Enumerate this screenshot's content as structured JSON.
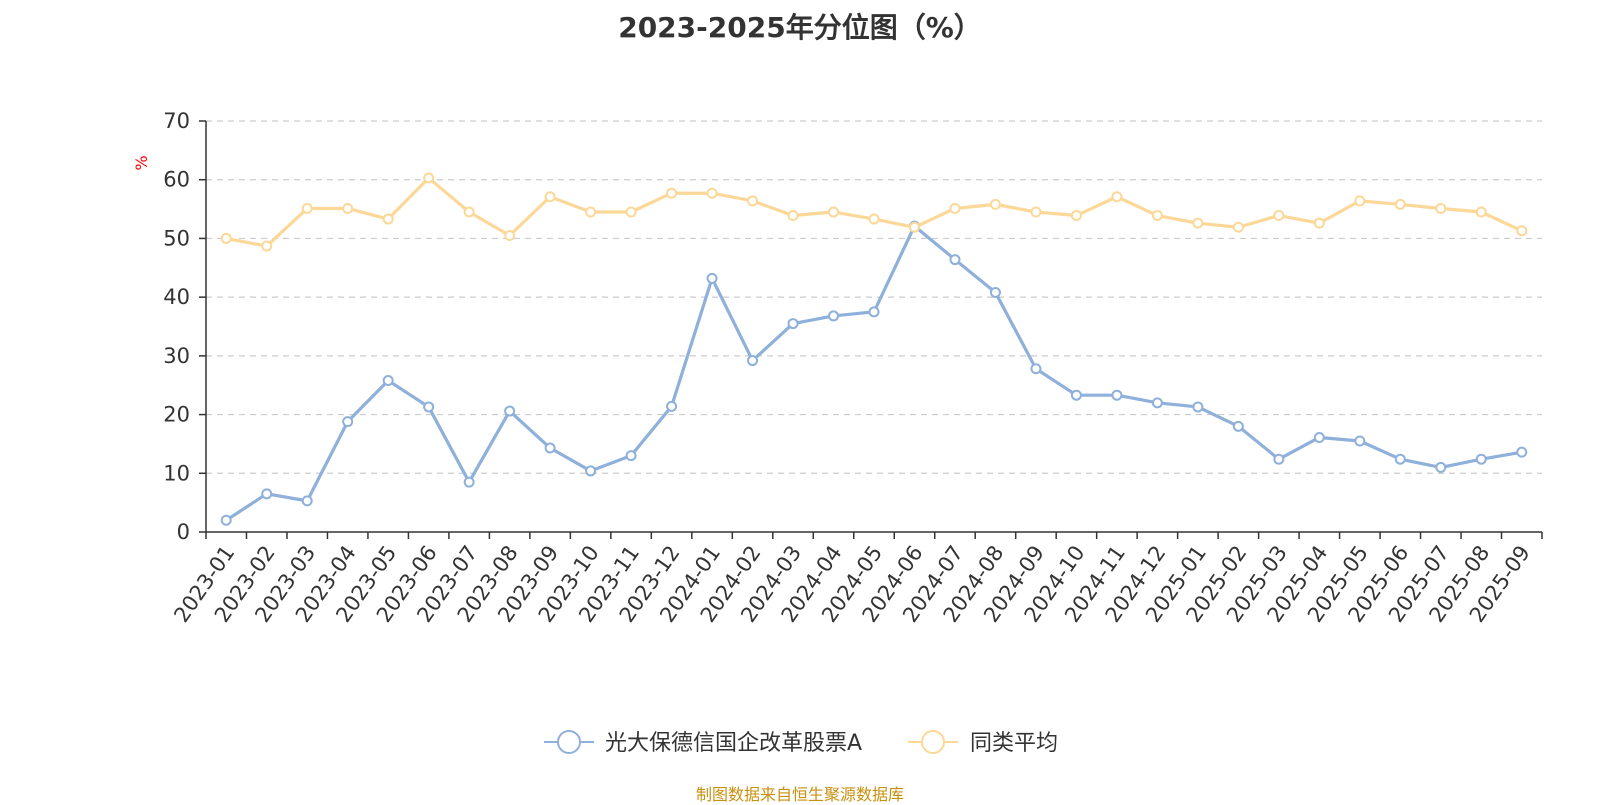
{
  "chart_data": {
    "type": "line",
    "title": "2023-2025年分位图（%）",
    "ylabel": "%",
    "ylim": [
      0,
      70
    ],
    "yticks": [
      0,
      10,
      20,
      30,
      40,
      50,
      60,
      70
    ],
    "grid": true,
    "legend_position": "bottom",
    "categories": [
      "2023-01",
      "2023-02",
      "2023-03",
      "2023-04",
      "2023-05",
      "2023-06",
      "2023-07",
      "2023-08",
      "2023-09",
      "2023-10",
      "2023-11",
      "2023-12",
      "2024-01",
      "2024-02",
      "2024-03",
      "2024-04",
      "2024-05",
      "2024-06",
      "2024-07",
      "2024-08",
      "2024-09",
      "2024-10",
      "2024-11",
      "2024-12",
      "2025-01",
      "2025-02",
      "2025-03",
      "2025-04",
      "2025-05",
      "2025-06",
      "2025-07",
      "2025-08",
      "2025-09"
    ],
    "series": [
      {
        "name": "光大保德信国企改革股票A",
        "color": "#8eb0da",
        "values": [
          2.0,
          6.5,
          5.3,
          18.8,
          25.8,
          21.3,
          8.5,
          20.6,
          14.3,
          10.4,
          13.0,
          21.4,
          43.2,
          29.2,
          35.5,
          36.8,
          37.5,
          52.1,
          46.4,
          40.8,
          27.8,
          23.3,
          23.3,
          22.0,
          21.3,
          18.0,
          12.4,
          16.1,
          15.5,
          12.4,
          11.0,
          12.4,
          13.6
        ]
      },
      {
        "name": "同类平均",
        "color": "#fbd898",
        "values": [
          50.0,
          48.7,
          55.1,
          55.1,
          53.3,
          60.3,
          54.5,
          50.5,
          57.1,
          54.5,
          54.5,
          57.7,
          57.7,
          56.4,
          53.9,
          54.5,
          53.3,
          51.9,
          55.1,
          55.8,
          54.5,
          53.9,
          57.1,
          53.9,
          52.6,
          51.9,
          53.9,
          52.6,
          56.4,
          55.8,
          55.1,
          54.5,
          51.3
        ]
      }
    ]
  },
  "footer": {
    "source": "制图数据来自恒生聚源数据库"
  }
}
